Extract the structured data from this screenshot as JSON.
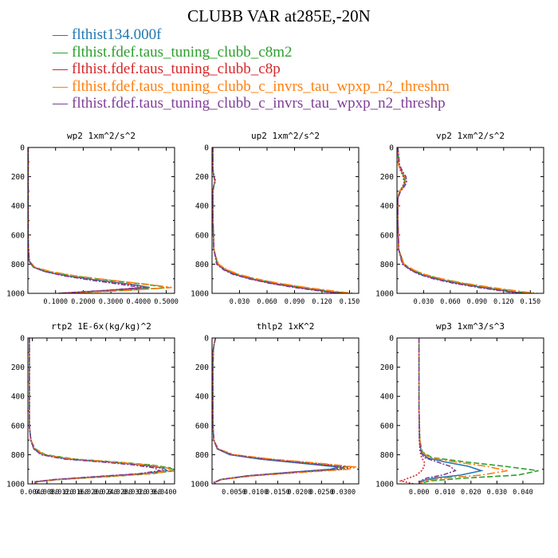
{
  "title": "CLUBB VAR at285E,-20N",
  "legend": [
    {
      "name": "flthist134.000f",
      "color": "#1f77b4"
    },
    {
      "name": "flthist.fdef.taus_tuning_clubb_c8m2",
      "color": "#2ca02c"
    },
    {
      "name": "flthist.fdef.taus_tuning_clubb_c8p",
      "color": "#d62728"
    },
    {
      "name": "flthist.fdef.taus_tuning_clubb_c_invrs_tau_wpxp_n2_threshm",
      "color": "#ff7f0e"
    },
    {
      "name": "flthist.fdef.taus_tuning_clubb_c_invrs_tau_wpxp_n2_threshp",
      "color": "#7f3f98"
    }
  ],
  "chart_data": [
    {
      "type": "line",
      "title": "wp2  1xm^2/s^2",
      "ylim": [
        0,
        1000
      ],
      "y_inverted": true,
      "xlim": [
        0,
        0.53
      ],
      "yticks": [
        "0",
        "200",
        "400",
        "600",
        "800",
        "1000"
      ],
      "xticks": [
        {
          "v": 0.1,
          "label": "0.1000"
        },
        {
          "v": 0.2,
          "label": "0.2000"
        },
        {
          "v": 0.3,
          "label": "0.3000"
        },
        {
          "v": 0.4,
          "label": "0.4000"
        },
        {
          "v": 0.5,
          "label": "0.5000"
        }
      ],
      "y": [
        0,
        100,
        200,
        300,
        400,
        500,
        600,
        700,
        780,
        820,
        850,
        880,
        910,
        940,
        960,
        980,
        1000
      ],
      "series": [
        {
          "values": [
            0.001,
            0.001,
            0.001,
            0.001,
            0.001,
            0.001,
            0.001,
            0.002,
            0.005,
            0.02,
            0.06,
            0.14,
            0.25,
            0.38,
            0.44,
            0.3,
            0.12
          ]
        },
        {
          "values": [
            0.001,
            0.001,
            0.001,
            0.001,
            0.001,
            0.001,
            0.001,
            0.002,
            0.005,
            0.02,
            0.07,
            0.16,
            0.29,
            0.43,
            0.51,
            0.35,
            0.13
          ]
        },
        {
          "values": [
            0.001,
            0.001,
            0.001,
            0.001,
            0.001,
            0.001,
            0.001,
            0.002,
            0.005,
            0.02,
            0.06,
            0.13,
            0.24,
            0.37,
            0.43,
            0.29,
            0.11
          ]
        },
        {
          "values": [
            0.001,
            0.001,
            0.001,
            0.001,
            0.001,
            0.001,
            0.001,
            0.002,
            0.006,
            0.025,
            0.08,
            0.17,
            0.3,
            0.44,
            0.52,
            0.36,
            0.13
          ]
        },
        {
          "values": [
            0.001,
            0.001,
            0.001,
            0.001,
            0.001,
            0.001,
            0.001,
            0.002,
            0.005,
            0.02,
            0.06,
            0.13,
            0.23,
            0.34,
            0.41,
            0.28,
            0.11
          ]
        }
      ]
    },
    {
      "type": "line",
      "title": "up2  1xm^2/s^2",
      "ylim": [
        0,
        1000
      ],
      "y_inverted": true,
      "xlim": [
        0,
        0.16
      ],
      "yticks": [
        "0",
        "200",
        "400",
        "600",
        "800",
        "1000"
      ],
      "xticks": [
        {
          "v": 0.03,
          "label": "0.030"
        },
        {
          "v": 0.06,
          "label": "0.060"
        },
        {
          "v": 0.09,
          "label": "0.090"
        },
        {
          "v": 0.12,
          "label": "0.120"
        },
        {
          "v": 0.15,
          "label": "0.150"
        }
      ],
      "y": [
        0,
        150,
        200,
        230,
        260,
        300,
        500,
        700,
        800,
        840,
        870,
        900,
        930,
        960,
        990,
        1000
      ],
      "series": [
        {
          "values": [
            0.001,
            0.001,
            0.002,
            0.003,
            0.002,
            0.001,
            0.001,
            0.002,
            0.006,
            0.014,
            0.025,
            0.042,
            0.065,
            0.095,
            0.13,
            0.145
          ]
        },
        {
          "values": [
            0.001,
            0.001,
            0.002,
            0.003,
            0.002,
            0.001,
            0.001,
            0.002,
            0.006,
            0.016,
            0.028,
            0.046,
            0.07,
            0.1,
            0.135,
            0.15
          ]
        },
        {
          "values": [
            0.001,
            0.001,
            0.002,
            0.003,
            0.002,
            0.001,
            0.001,
            0.002,
            0.006,
            0.014,
            0.025,
            0.042,
            0.064,
            0.094,
            0.128,
            0.143
          ]
        },
        {
          "values": [
            0.001,
            0.001,
            0.002,
            0.003,
            0.002,
            0.001,
            0.001,
            0.002,
            0.007,
            0.017,
            0.029,
            0.048,
            0.072,
            0.103,
            0.14,
            0.155
          ]
        },
        {
          "values": [
            0.001,
            0.001,
            0.002,
            0.004,
            0.002,
            0.001,
            0.001,
            0.002,
            0.005,
            0.013,
            0.023,
            0.04,
            0.062,
            0.09,
            0.125,
            0.14
          ]
        }
      ]
    },
    {
      "type": "line",
      "title": "vp2  1xm^2/s^2",
      "ylim": [
        0,
        1000
      ],
      "y_inverted": true,
      "xlim": [
        0,
        0.165
      ],
      "yticks": [
        "0",
        "200",
        "400",
        "600",
        "800",
        "1000"
      ],
      "xticks": [
        {
          "v": 0.03,
          "label": "0.030"
        },
        {
          "v": 0.06,
          "label": "0.060"
        },
        {
          "v": 0.09,
          "label": "0.090"
        },
        {
          "v": 0.12,
          "label": "0.120"
        },
        {
          "v": 0.15,
          "label": "0.150"
        }
      ],
      "y": [
        0,
        120,
        160,
        200,
        240,
        270,
        300,
        350,
        500,
        700,
        800,
        840,
        870,
        900,
        930,
        960,
        990,
        1000
      ],
      "series": [
        {
          "values": [
            0.001,
            0.002,
            0.005,
            0.008,
            0.009,
            0.007,
            0.003,
            0.001,
            0.001,
            0.002,
            0.007,
            0.016,
            0.027,
            0.044,
            0.067,
            0.097,
            0.13,
            0.145
          ]
        },
        {
          "values": [
            0.001,
            0.002,
            0.005,
            0.008,
            0.009,
            0.007,
            0.003,
            0.001,
            0.001,
            0.002,
            0.008,
            0.018,
            0.03,
            0.048,
            0.072,
            0.103,
            0.138,
            0.152
          ]
        },
        {
          "values": [
            0.001,
            0.002,
            0.004,
            0.007,
            0.008,
            0.006,
            0.003,
            0.001,
            0.001,
            0.002,
            0.007,
            0.016,
            0.026,
            0.043,
            0.065,
            0.095,
            0.128,
            0.143
          ]
        },
        {
          "values": [
            0.001,
            0.002,
            0.005,
            0.009,
            0.01,
            0.008,
            0.003,
            0.001,
            0.001,
            0.002,
            0.008,
            0.019,
            0.031,
            0.05,
            0.075,
            0.107,
            0.143,
            0.158
          ]
        },
        {
          "values": [
            0.001,
            0.003,
            0.006,
            0.01,
            0.011,
            0.008,
            0.004,
            0.001,
            0.001,
            0.002,
            0.006,
            0.015,
            0.025,
            0.041,
            0.063,
            0.092,
            0.125,
            0.14
          ]
        }
      ]
    },
    {
      "type": "line",
      "title": "rtp2  1E-6x(kg/kg)^2",
      "ylim": [
        0,
        1000
      ],
      "y_inverted": true,
      "xlim": [
        0,
        1
      ],
      "yticks": [
        "0",
        "200",
        "400",
        "600",
        "800",
        "1000"
      ],
      "xticks": [
        {
          "v": 0.03,
          "label": "0.0040"
        },
        {
          "v": 0.13,
          "label": "0.0080"
        },
        {
          "v": 0.23,
          "label": "0.0120"
        },
        {
          "v": 0.33,
          "label": "0.0160"
        },
        {
          "v": 0.43,
          "label": "0.0200"
        },
        {
          "v": 0.53,
          "label": "0.0240"
        },
        {
          "v": 0.63,
          "label": "0.0280"
        },
        {
          "v": 0.73,
          "label": "0.0320"
        },
        {
          "v": 0.83,
          "label": "0.0360"
        },
        {
          "v": 0.93,
          "label": "0.0400"
        }
      ],
      "y": [
        0,
        200,
        400,
        600,
        700,
        760,
        800,
        830,
        850,
        870,
        890,
        910,
        930,
        950,
        970,
        985,
        1000
      ],
      "series": [
        {
          "values": [
            0.01,
            0.01,
            0.01,
            0.01,
            0.02,
            0.04,
            0.1,
            0.28,
            0.55,
            0.78,
            0.92,
            0.95,
            0.8,
            0.5,
            0.2,
            0.05,
            0.05
          ]
        },
        {
          "values": [
            0.01,
            0.01,
            0.01,
            0.01,
            0.02,
            0.05,
            0.12,
            0.32,
            0.6,
            0.84,
            0.97,
            1.0,
            0.85,
            0.55,
            0.22,
            0.06,
            0.06
          ]
        },
        {
          "values": [
            0.01,
            0.01,
            0.01,
            0.01,
            0.02,
            0.04,
            0.1,
            0.27,
            0.53,
            0.76,
            0.9,
            0.93,
            0.78,
            0.48,
            0.2,
            0.05,
            0.05
          ]
        },
        {
          "values": [
            0.01,
            0.01,
            0.01,
            0.01,
            0.02,
            0.05,
            0.11,
            0.3,
            0.58,
            0.82,
            0.95,
            0.98,
            0.83,
            0.53,
            0.21,
            0.06,
            0.06
          ]
        },
        {
          "values": [
            0.01,
            0.01,
            0.01,
            0.01,
            0.02,
            0.04,
            0.09,
            0.25,
            0.5,
            0.72,
            0.86,
            0.9,
            0.76,
            0.46,
            0.18,
            0.05,
            0.05
          ]
        }
      ]
    },
    {
      "type": "line",
      "title": "thlp2  1xK^2",
      "ylim": [
        0,
        1000
      ],
      "y_inverted": true,
      "xlim": [
        0,
        0.0335
      ],
      "yticks": [
        "0",
        "200",
        "400",
        "600",
        "800",
        "1000"
      ],
      "xticks": [
        {
          "v": 0.005,
          "label": "0.0050"
        },
        {
          "v": 0.01,
          "label": "0.0100"
        },
        {
          "v": 0.015,
          "label": "0.0150"
        },
        {
          "v": 0.02,
          "label": "0.0200"
        },
        {
          "v": 0.025,
          "label": "0.0250"
        },
        {
          "v": 0.03,
          "label": "0.0300"
        }
      ],
      "y": [
        0,
        40,
        80,
        200,
        400,
        600,
        700,
        760,
        800,
        830,
        860,
        885,
        900,
        920,
        945,
        970,
        990,
        1000
      ],
      "series": [
        {
          "values": [
            0.0008,
            0.0005,
            0.0003,
            0.0002,
            0.0002,
            0.0002,
            0.0004,
            0.0012,
            0.004,
            0.011,
            0.021,
            0.029,
            0.027,
            0.018,
            0.008,
            0.002,
            0.0005,
            0.0008
          ]
        },
        {
          "values": [
            0.0008,
            0.0005,
            0.0003,
            0.0002,
            0.0002,
            0.0002,
            0.0004,
            0.0013,
            0.0045,
            0.012,
            0.023,
            0.031,
            0.029,
            0.019,
            0.0085,
            0.002,
            0.0005,
            0.0008
          ]
        },
        {
          "values": [
            0.0008,
            0.0005,
            0.0003,
            0.0002,
            0.0002,
            0.0002,
            0.0004,
            0.0014,
            0.0048,
            0.013,
            0.024,
            0.032,
            0.03,
            0.02,
            0.009,
            0.0022,
            0.0006,
            0.0008
          ]
        },
        {
          "values": [
            0.0008,
            0.0005,
            0.0003,
            0.0002,
            0.0002,
            0.0002,
            0.0004,
            0.0014,
            0.005,
            0.0135,
            0.025,
            0.033,
            0.031,
            0.021,
            0.0095,
            0.0023,
            0.0006,
            0.0008
          ]
        },
        {
          "values": [
            0.0008,
            0.0005,
            0.0003,
            0.0002,
            0.0002,
            0.0002,
            0.0004,
            0.0012,
            0.0042,
            0.0115,
            0.022,
            0.03,
            0.028,
            0.0185,
            0.0082,
            0.002,
            0.0005,
            0.0008
          ]
        }
      ]
    },
    {
      "type": "line",
      "title": "wp3  1xm^3/s^3",
      "ylim": [
        0,
        1000
      ],
      "y_inverted": true,
      "xlim": [
        -0.0085,
        0.048
      ],
      "yticks": [
        "0",
        "200",
        "400",
        "600",
        "800",
        "1000"
      ],
      "xticks": [
        {
          "v": 0.0,
          "label": "0.000"
        },
        {
          "v": 0.01,
          "label": "0.010"
        },
        {
          "v": 0.02,
          "label": "0.020"
        },
        {
          "v": 0.03,
          "label": "0.030"
        },
        {
          "v": 0.04,
          "label": "0.040"
        }
      ],
      "y": [
        0,
        100,
        300,
        500,
        700,
        780,
        820,
        850,
        880,
        910,
        940,
        960,
        980,
        1000
      ],
      "series": [
        {
          "values": [
            0.0,
            0.0,
            0.0,
            0.0,
            0.0002,
            0.0008,
            0.003,
            0.01,
            0.019,
            0.024,
            0.016,
            0.006,
            0.001,
            0.0
          ]
        },
        {
          "values": [
            0.0,
            0.0,
            0.0,
            0.0,
            0.0003,
            0.0012,
            0.005,
            0.018,
            0.033,
            0.046,
            0.038,
            0.018,
            0.004,
            0.0
          ]
        },
        {
          "values": [
            0.0,
            0.0,
            0.0,
            0.0,
            0.0001,
            0.0004,
            0.001,
            0.002,
            0.002,
            0.001,
            -0.001,
            -0.004,
            -0.007,
            -0.002
          ]
        },
        {
          "values": [
            0.0,
            0.0,
            0.0,
            0.0,
            0.0003,
            0.001,
            0.004,
            0.014,
            0.026,
            0.034,
            0.024,
            0.01,
            0.002,
            0.0
          ]
        },
        {
          "values": [
            0.0,
            0.0,
            0.0,
            0.0,
            0.0002,
            0.0006,
            0.002,
            0.007,
            0.012,
            0.014,
            0.009,
            0.003,
            0.0005,
            0.0
          ]
        }
      ]
    }
  ]
}
